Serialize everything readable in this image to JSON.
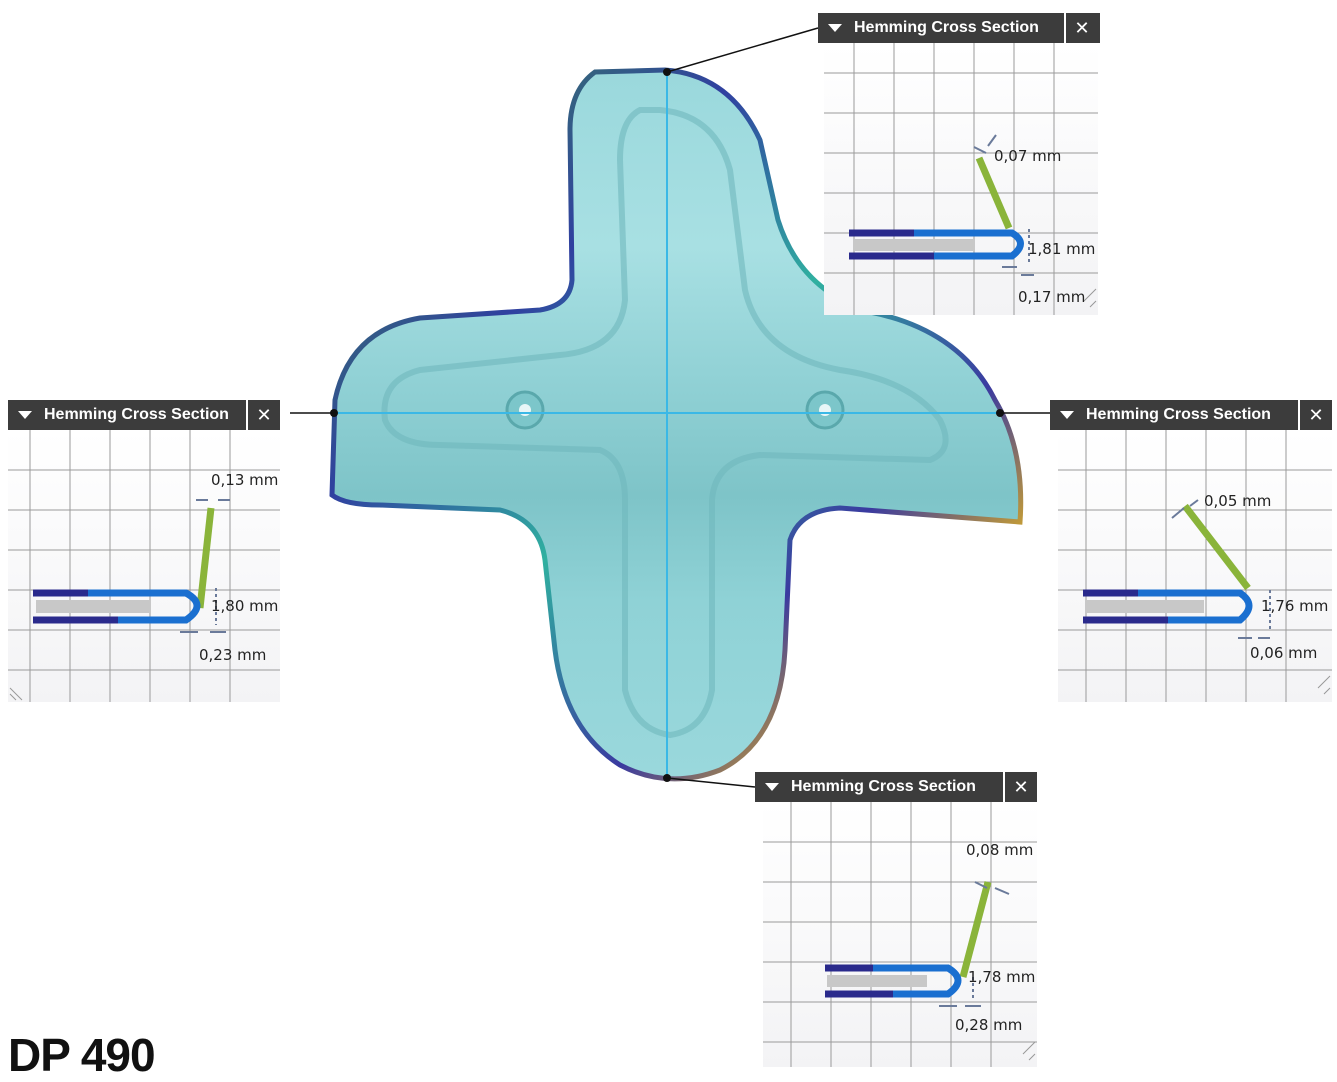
{
  "panels": {
    "top": {
      "title": "Hemming Cross Section",
      "close_glyph": "✕",
      "gap": "0,07 mm",
      "height": "1,81 mm",
      "offset": "0,17 mm"
    },
    "left": {
      "title": "Hemming Cross Section",
      "close_glyph": "✕",
      "gap": "0,13 mm",
      "height": "1,80 mm",
      "offset": "0,23 mm"
    },
    "right": {
      "title": "Hemming Cross Section",
      "close_glyph": "✕",
      "gap": "0,05 mm",
      "height": "1,76 mm",
      "offset": "0,06 mm"
    },
    "bottom": {
      "title": "Hemming Cross Section",
      "close_glyph": "✕",
      "gap": "0,08 mm",
      "height": "1,78 mm",
      "offset": "0,28 mm"
    }
  },
  "product_title": "DP 490",
  "colors": {
    "part_fill": "#8fd4d8",
    "axis_line": "#3ab8e6",
    "flange_green": "#8ab43a",
    "hem_blue": "#1a6fd0",
    "hem_navy": "#2a2a8c",
    "hem_core": "#c8c8c8"
  },
  "icons": {
    "collapse": "triangle-down-icon",
    "close": "close-x-icon"
  }
}
